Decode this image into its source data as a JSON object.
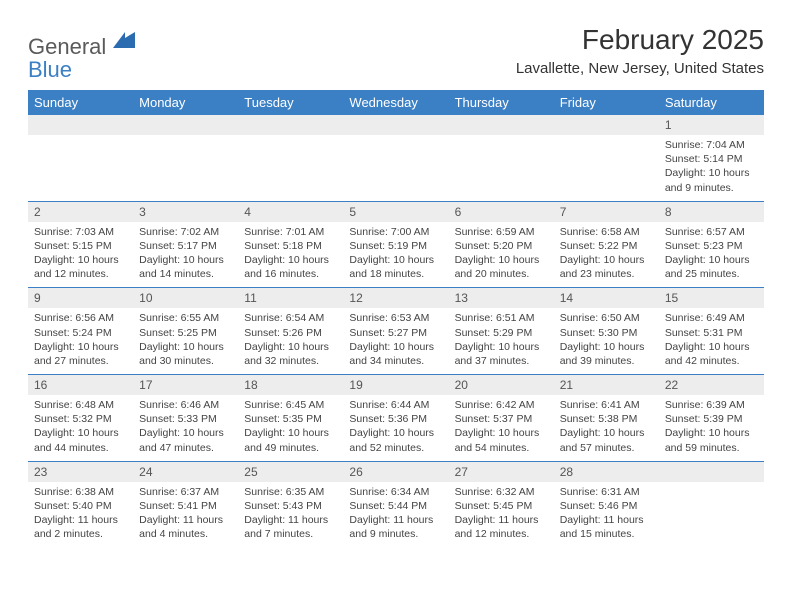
{
  "logo": {
    "word1": "General",
    "word2": "Blue"
  },
  "title": "February 2025",
  "location": "Lavallette, New Jersey, United States",
  "colors": {
    "header_bg": "#3b7fc4",
    "header_text": "#ffffff",
    "num_bg": "#ededed",
    "text": "#333333",
    "logo_gray": "#5a5a5a",
    "logo_blue": "#3b7fc4"
  },
  "typography": {
    "title_fontsize": 28,
    "location_fontsize": 15,
    "dayheader_fontsize": 13,
    "daynum_fontsize": 12,
    "info_fontsize": 10.5
  },
  "days": [
    "Sunday",
    "Monday",
    "Tuesday",
    "Wednesday",
    "Thursday",
    "Friday",
    "Saturday"
  ],
  "weeks": [
    [
      null,
      null,
      null,
      null,
      null,
      null,
      {
        "n": "1",
        "sr": "7:04 AM",
        "ss": "5:14 PM",
        "dl": "10 hours and 9 minutes."
      }
    ],
    [
      {
        "n": "2",
        "sr": "7:03 AM",
        "ss": "5:15 PM",
        "dl": "10 hours and 12 minutes."
      },
      {
        "n": "3",
        "sr": "7:02 AM",
        "ss": "5:17 PM",
        "dl": "10 hours and 14 minutes."
      },
      {
        "n": "4",
        "sr": "7:01 AM",
        "ss": "5:18 PM",
        "dl": "10 hours and 16 minutes."
      },
      {
        "n": "5",
        "sr": "7:00 AM",
        "ss": "5:19 PM",
        "dl": "10 hours and 18 minutes."
      },
      {
        "n": "6",
        "sr": "6:59 AM",
        "ss": "5:20 PM",
        "dl": "10 hours and 20 minutes."
      },
      {
        "n": "7",
        "sr": "6:58 AM",
        "ss": "5:22 PM",
        "dl": "10 hours and 23 minutes."
      },
      {
        "n": "8",
        "sr": "6:57 AM",
        "ss": "5:23 PM",
        "dl": "10 hours and 25 minutes."
      }
    ],
    [
      {
        "n": "9",
        "sr": "6:56 AM",
        "ss": "5:24 PM",
        "dl": "10 hours and 27 minutes."
      },
      {
        "n": "10",
        "sr": "6:55 AM",
        "ss": "5:25 PM",
        "dl": "10 hours and 30 minutes."
      },
      {
        "n": "11",
        "sr": "6:54 AM",
        "ss": "5:26 PM",
        "dl": "10 hours and 32 minutes."
      },
      {
        "n": "12",
        "sr": "6:53 AM",
        "ss": "5:27 PM",
        "dl": "10 hours and 34 minutes."
      },
      {
        "n": "13",
        "sr": "6:51 AM",
        "ss": "5:29 PM",
        "dl": "10 hours and 37 minutes."
      },
      {
        "n": "14",
        "sr": "6:50 AM",
        "ss": "5:30 PM",
        "dl": "10 hours and 39 minutes."
      },
      {
        "n": "15",
        "sr": "6:49 AM",
        "ss": "5:31 PM",
        "dl": "10 hours and 42 minutes."
      }
    ],
    [
      {
        "n": "16",
        "sr": "6:48 AM",
        "ss": "5:32 PM",
        "dl": "10 hours and 44 minutes."
      },
      {
        "n": "17",
        "sr": "6:46 AM",
        "ss": "5:33 PM",
        "dl": "10 hours and 47 minutes."
      },
      {
        "n": "18",
        "sr": "6:45 AM",
        "ss": "5:35 PM",
        "dl": "10 hours and 49 minutes."
      },
      {
        "n": "19",
        "sr": "6:44 AM",
        "ss": "5:36 PM",
        "dl": "10 hours and 52 minutes."
      },
      {
        "n": "20",
        "sr": "6:42 AM",
        "ss": "5:37 PM",
        "dl": "10 hours and 54 minutes."
      },
      {
        "n": "21",
        "sr": "6:41 AM",
        "ss": "5:38 PM",
        "dl": "10 hours and 57 minutes."
      },
      {
        "n": "22",
        "sr": "6:39 AM",
        "ss": "5:39 PM",
        "dl": "10 hours and 59 minutes."
      }
    ],
    [
      {
        "n": "23",
        "sr": "6:38 AM",
        "ss": "5:40 PM",
        "dl": "11 hours and 2 minutes."
      },
      {
        "n": "24",
        "sr": "6:37 AM",
        "ss": "5:41 PM",
        "dl": "11 hours and 4 minutes."
      },
      {
        "n": "25",
        "sr": "6:35 AM",
        "ss": "5:43 PM",
        "dl": "11 hours and 7 minutes."
      },
      {
        "n": "26",
        "sr": "6:34 AM",
        "ss": "5:44 PM",
        "dl": "11 hours and 9 minutes."
      },
      {
        "n": "27",
        "sr": "6:32 AM",
        "ss": "5:45 PM",
        "dl": "11 hours and 12 minutes."
      },
      {
        "n": "28",
        "sr": "6:31 AM",
        "ss": "5:46 PM",
        "dl": "11 hours and 15 minutes."
      },
      null
    ]
  ],
  "labels": {
    "sunrise": "Sunrise:",
    "sunset": "Sunset:",
    "daylight": "Daylight:"
  }
}
